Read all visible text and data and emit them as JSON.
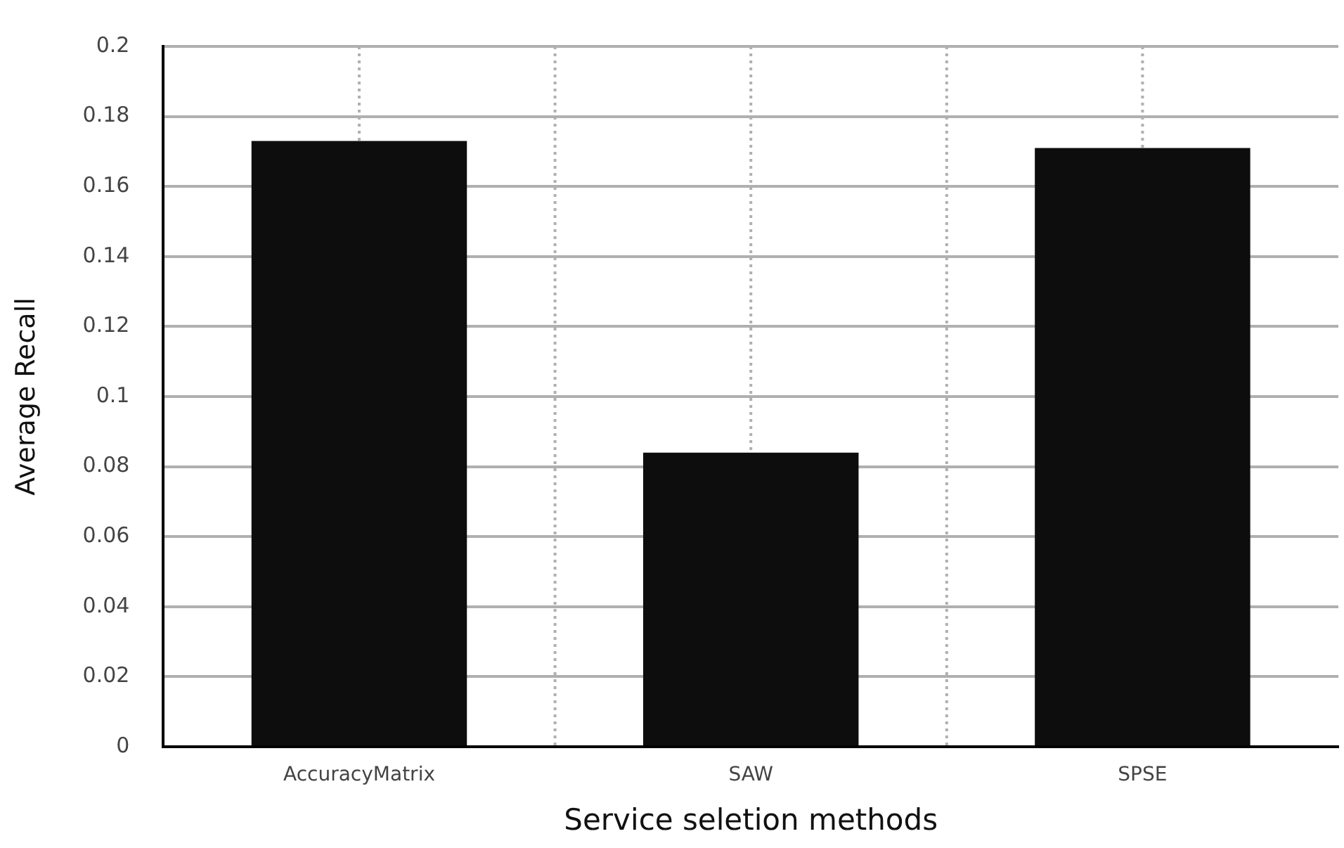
{
  "chart_data": {
    "type": "bar",
    "xlabel": "Service seletion methods",
    "ylabel": "Average Recall",
    "categories": [
      "AccuracyMatrix",
      "SAW",
      "SPSE"
    ],
    "values": [
      0.173,
      0.084,
      0.171
    ],
    "color": "#0d0d0d",
    "ylim": [
      0,
      0.2
    ],
    "yticks": [
      0,
      0.02,
      0.04,
      0.06,
      0.08,
      0.1,
      0.12,
      0.14,
      0.16,
      0.18,
      0.2
    ],
    "grid": true
  }
}
